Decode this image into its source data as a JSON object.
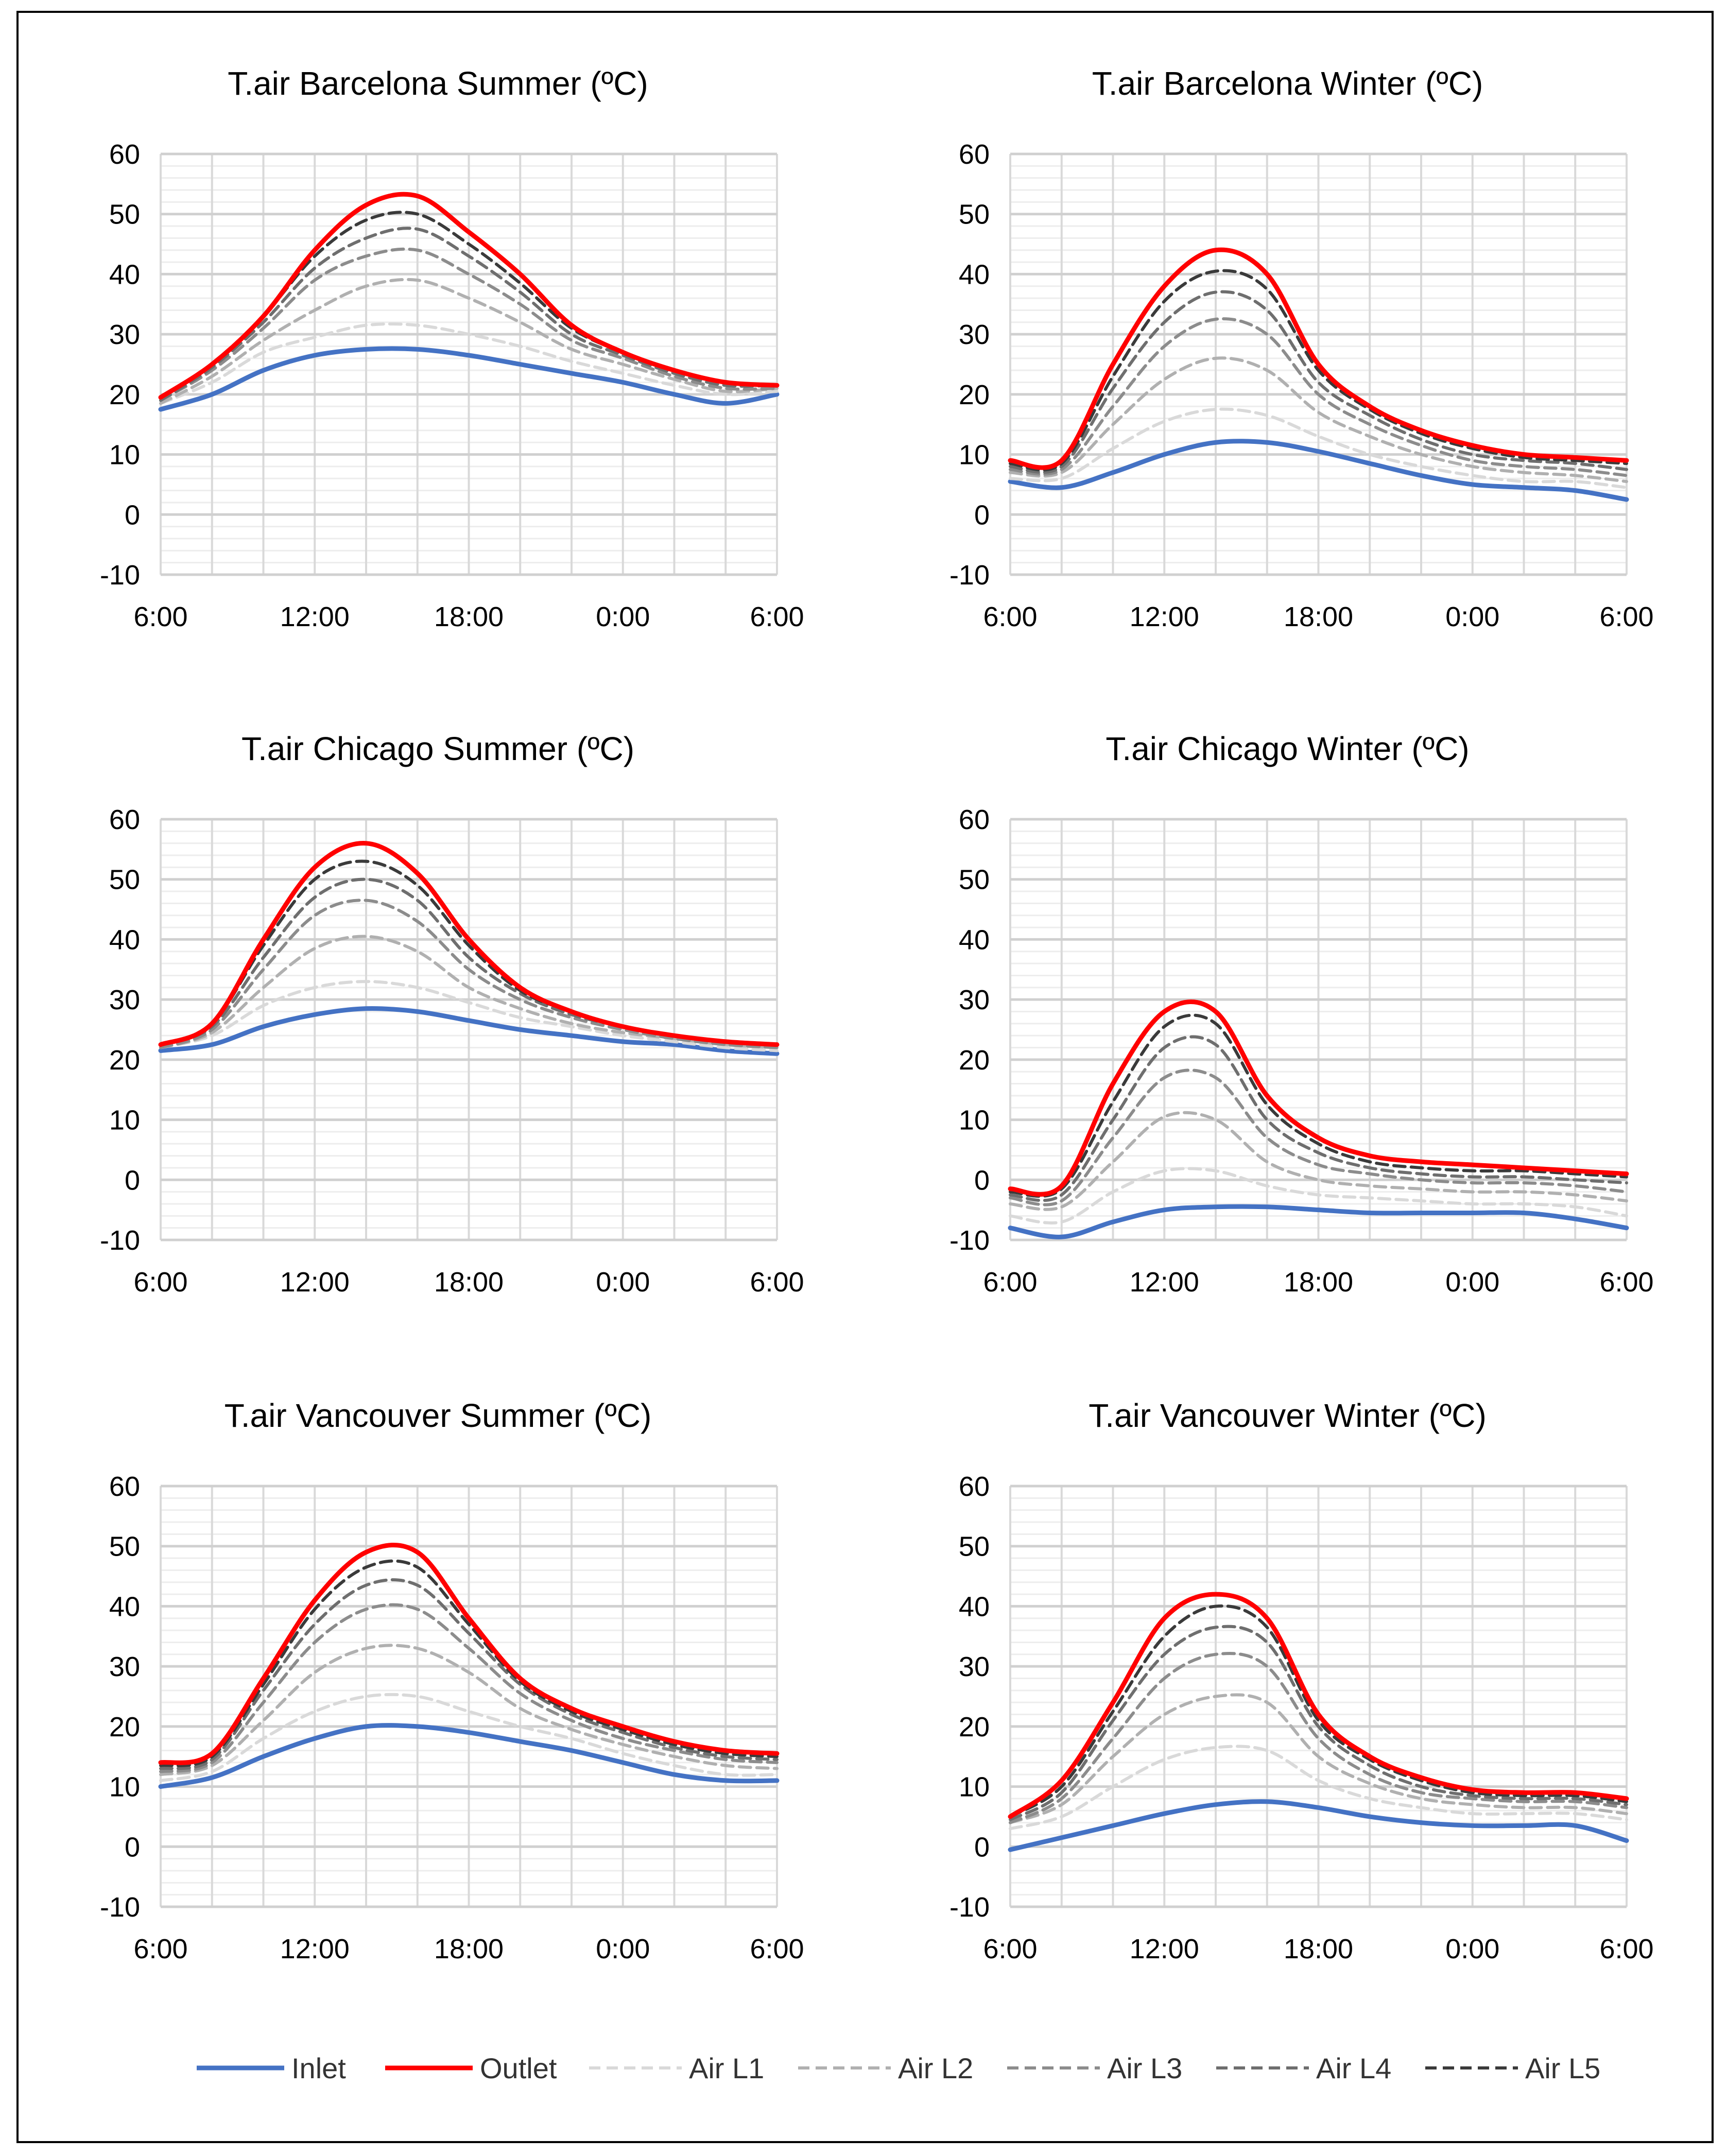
{
  "legend": [
    {
      "name": "Inlet",
      "color": "#4472C4",
      "dash": false
    },
    {
      "name": "Outlet",
      "color": "#FF0000",
      "dash": false
    },
    {
      "name": "Air L1",
      "color": "#D9D9D9",
      "dash": true
    },
    {
      "name": "Air L2",
      "color": "#B0B0B0",
      "dash": true
    },
    {
      "name": "Air L3",
      "color": "#8C8C8C",
      "dash": true
    },
    {
      "name": "Air L4",
      "color": "#6E6E6E",
      "dash": true
    },
    {
      "name": "Air L5",
      "color": "#3A3A3A",
      "dash": true
    }
  ],
  "chart_data": [
    {
      "type": "line",
      "title": "T.air Barcelona Summer (ºC)",
      "x_labels": [
        "6:00",
        "12:00",
        "18:00",
        "0:00",
        "6:00"
      ],
      "x_hours": [
        6,
        8,
        10,
        12,
        14,
        16,
        18,
        20,
        22,
        24,
        26,
        28,
        30
      ],
      "ylim": [
        -10,
        60
      ],
      "y_ticks": [
        -10,
        0,
        10,
        20,
        30,
        40,
        50,
        60
      ],
      "grid": true,
      "series": [
        {
          "name": "Inlet",
          "values": [
            17.5,
            20,
            24,
            26.5,
            27.5,
            27.5,
            26.5,
            25,
            23.5,
            22,
            20,
            18.5,
            20
          ]
        },
        {
          "name": "Outlet",
          "values": [
            19.5,
            25,
            33,
            44,
            51.5,
            53,
            47,
            40,
            31.5,
            27,
            24,
            22,
            21.5
          ]
        },
        {
          "name": "Air L1",
          "values": [
            18.5,
            22,
            27,
            29.5,
            31.5,
            31.5,
            30,
            28,
            25.5,
            23.5,
            21.5,
            20,
            20.5
          ]
        },
        {
          "name": "Air L2",
          "values": [
            18.5,
            23,
            29,
            34,
            38,
            39,
            36,
            32,
            27.5,
            25,
            22.5,
            20.5,
            21
          ]
        },
        {
          "name": "Air L3",
          "values": [
            19,
            24,
            31,
            39,
            43,
            44,
            40,
            35,
            29,
            26,
            23,
            21,
            21
          ]
        },
        {
          "name": "Air L4",
          "values": [
            19,
            24.5,
            32,
            41,
            46,
            47.5,
            43,
            37,
            30,
            26.5,
            23.5,
            21.5,
            21.5
          ]
        },
        {
          "name": "Air L5",
          "values": [
            19.5,
            25,
            33,
            43,
            49,
            50,
            45,
            38.5,
            31,
            27,
            24,
            22,
            21.5
          ]
        }
      ]
    },
    {
      "type": "line",
      "title": "T.air Barcelona Winter (ºC)",
      "x_labels": [
        "6:00",
        "12:00",
        "18:00",
        "0:00",
        "6:00"
      ],
      "x_hours": [
        6,
        8,
        10,
        12,
        14,
        16,
        18,
        20,
        22,
        24,
        26,
        28,
        30
      ],
      "ylim": [
        -10,
        60
      ],
      "y_ticks": [
        -10,
        0,
        10,
        20,
        30,
        40,
        50,
        60
      ],
      "grid": true,
      "series": [
        {
          "name": "Inlet",
          "values": [
            5.5,
            4.5,
            7,
            10,
            12,
            12,
            10.5,
            8.5,
            6.5,
            5,
            4.5,
            4,
            2.5
          ]
        },
        {
          "name": "Outlet",
          "values": [
            9,
            9,
            25,
            38,
            44,
            40,
            25,
            18,
            14,
            11.5,
            10,
            9.5,
            9
          ]
        },
        {
          "name": "Air L1",
          "values": [
            6,
            6,
            11,
            15.5,
            17.5,
            16.5,
            13,
            10,
            8,
            6.5,
            5.5,
            5.5,
            4.5
          ]
        },
        {
          "name": "Air L2",
          "values": [
            7,
            7,
            15,
            22.5,
            26,
            24,
            17,
            13,
            10,
            8,
            7,
            6.5,
            5.5
          ]
        },
        {
          "name": "Air L3",
          "values": [
            7.5,
            7.5,
            18,
            28,
            32.5,
            30,
            20,
            15,
            11.5,
            9,
            8,
            7.5,
            6.5
          ]
        },
        {
          "name": "Air L4",
          "values": [
            8,
            8,
            21,
            32,
            37,
            34,
            22,
            16.5,
            12.5,
            10,
            9,
            8.5,
            7.5
          ]
        },
        {
          "name": "Air L5",
          "values": [
            8.5,
            8.5,
            23,
            35.5,
            40.5,
            37.5,
            24,
            17.5,
            13.5,
            11,
            9.5,
            9,
            8.5
          ]
        }
      ]
    },
    {
      "type": "line",
      "title": "T.air Chicago Summer (ºC)",
      "x_labels": [
        "6:00",
        "12:00",
        "18:00",
        "0:00",
        "6:00"
      ],
      "x_hours": [
        6,
        8,
        10,
        12,
        14,
        16,
        18,
        20,
        22,
        24,
        26,
        28,
        30
      ],
      "ylim": [
        -10,
        60
      ],
      "y_ticks": [
        -10,
        0,
        10,
        20,
        30,
        40,
        50,
        60
      ],
      "grid": true,
      "series": [
        {
          "name": "Inlet",
          "values": [
            21.5,
            22.5,
            25.5,
            27.5,
            28.5,
            28,
            26.5,
            25,
            24,
            23,
            22.5,
            21.5,
            21
          ]
        },
        {
          "name": "Outlet",
          "values": [
            22.5,
            26,
            40,
            52,
            56,
            51,
            40,
            32,
            28,
            25.5,
            24,
            23,
            22.5
          ]
        },
        {
          "name": "Air L1",
          "values": [
            22,
            24,
            29,
            32,
            33,
            32,
            29.5,
            27,
            25.5,
            24,
            23,
            22,
            21.5
          ]
        },
        {
          "name": "Air L2",
          "values": [
            22,
            24.5,
            32,
            38.5,
            40.5,
            38,
            32,
            28.5,
            26,
            24.5,
            23.5,
            22.5,
            22
          ]
        },
        {
          "name": "Air L3",
          "values": [
            22,
            25,
            35,
            44,
            46.5,
            43,
            35,
            30,
            27,
            25,
            23.5,
            22.5,
            22
          ]
        },
        {
          "name": "Air L4",
          "values": [
            22.5,
            25.5,
            37,
            47,
            50,
            46.5,
            37,
            31,
            27.5,
            25.5,
            24,
            23,
            22.5
          ]
        },
        {
          "name": "Air L5",
          "values": [
            22.5,
            26,
            39,
            50,
            53,
            49,
            39,
            31.5,
            28,
            25.5,
            24,
            23,
            22.5
          ]
        }
      ]
    },
    {
      "type": "line",
      "title": "T.air Chicago Winter (ºC)",
      "x_labels": [
        "6:00",
        "12:00",
        "18:00",
        "0:00",
        "6:00"
      ],
      "x_hours": [
        6,
        8,
        10,
        12,
        14,
        16,
        18,
        20,
        22,
        24,
        26,
        28,
        30
      ],
      "ylim": [
        -10,
        60
      ],
      "y_ticks": [
        -10,
        0,
        10,
        20,
        30,
        40,
        50,
        60
      ],
      "grid": true,
      "series": [
        {
          "name": "Inlet",
          "values": [
            -8,
            -9.5,
            -7,
            -5,
            -4.5,
            -4.5,
            -5,
            -5.5,
            -5.5,
            -5.5,
            -5.5,
            -6.5,
            -8
          ]
        },
        {
          "name": "Outlet",
          "values": [
            -1.5,
            -1,
            16,
            28,
            28,
            14,
            7,
            4,
            3,
            2.5,
            2,
            1.5,
            1
          ]
        },
        {
          "name": "Air L1",
          "values": [
            -6,
            -7,
            -2,
            1.5,
            1.5,
            -1,
            -2.5,
            -3,
            -3.5,
            -4,
            -4,
            -4.5,
            -6
          ]
        },
        {
          "name": "Air L2",
          "values": [
            -4,
            -4.5,
            3,
            10.5,
            10,
            3,
            0,
            -1,
            -1.5,
            -2,
            -2,
            -2.5,
            -3.5
          ]
        },
        {
          "name": "Air L3",
          "values": [
            -3,
            -3.5,
            7,
            17,
            17,
            7,
            2.5,
            1,
            0,
            -0.5,
            -0.5,
            -1,
            -2
          ]
        },
        {
          "name": "Air L4",
          "values": [
            -2.5,
            -2.5,
            10,
            22,
            22.5,
            10,
            4.5,
            2,
            1,
            0.5,
            0.5,
            0,
            -0.5
          ]
        },
        {
          "name": "Air L5",
          "values": [
            -2,
            -1.5,
            13,
            25.5,
            26,
            12.5,
            6,
            3,
            2,
            1.5,
            1.5,
            1,
            0.5
          ]
        }
      ]
    },
    {
      "type": "line",
      "title": "T.air Vancouver  Summer (ºC)",
      "x_labels": [
        "6:00",
        "12:00",
        "18:00",
        "0:00",
        "6:00"
      ],
      "x_hours": [
        6,
        8,
        10,
        12,
        14,
        16,
        18,
        20,
        22,
        24,
        26,
        28,
        30
      ],
      "ylim": [
        -10,
        60
      ],
      "y_ticks": [
        -10,
        0,
        10,
        20,
        30,
        40,
        50,
        60
      ],
      "grid": true,
      "series": [
        {
          "name": "Inlet",
          "values": [
            10,
            11.5,
            15,
            18,
            20,
            20,
            19,
            17.5,
            16,
            14,
            12,
            11,
            11
          ]
        },
        {
          "name": "Outlet",
          "values": [
            14,
            15.5,
            28,
            41,
            49,
            49,
            38,
            28,
            23,
            20,
            17.5,
            16,
            15.5
          ]
        },
        {
          "name": "Air L1",
          "values": [
            11,
            12.5,
            18,
            22.5,
            25,
            25,
            22.5,
            20,
            18,
            15.5,
            13.5,
            12,
            12
          ]
        },
        {
          "name": "Air L2",
          "values": [
            12,
            13.5,
            21,
            29,
            33,
            33,
            29,
            23,
            19.5,
            17,
            15,
            13.5,
            13
          ]
        },
        {
          "name": "Air L3",
          "values": [
            12.5,
            14,
            24,
            34,
            39.5,
            39.5,
            33,
            25.5,
            21,
            18,
            16,
            14.5,
            14
          ]
        },
        {
          "name": "Air L4",
          "values": [
            13,
            14.5,
            26,
            37,
            43.5,
            43.5,
            35.5,
            27,
            22,
            19,
            16.5,
            15,
            14.5
          ]
        },
        {
          "name": "Air L5",
          "values": [
            13.5,
            15,
            27,
            39.5,
            46.5,
            46.5,
            37,
            27.5,
            22.5,
            19.5,
            17,
            15.5,
            15
          ]
        }
      ]
    },
    {
      "type": "line",
      "title": "T.air Vancouver Winter (ºC)",
      "x_labels": [
        "6:00",
        "12:00",
        "18:00",
        "0:00",
        "6:00"
      ],
      "x_hours": [
        6,
        8,
        10,
        12,
        14,
        16,
        18,
        20,
        22,
        24,
        26,
        28,
        30
      ],
      "ylim": [
        -10,
        60
      ],
      "y_ticks": [
        -10,
        0,
        10,
        20,
        30,
        40,
        50,
        60
      ],
      "grid": true,
      "series": [
        {
          "name": "Inlet",
          "values": [
            -0.5,
            1.5,
            3.5,
            5.5,
            7,
            7.5,
            6.5,
            5,
            4,
            3.5,
            3.5,
            3.5,
            1
          ]
        },
        {
          "name": "Outlet",
          "values": [
            5,
            11,
            24,
            38,
            42,
            38,
            22,
            15,
            11.5,
            9.5,
            9,
            9,
            8
          ]
        },
        {
          "name": "Air L1",
          "values": [
            3,
            5,
            10,
            14.5,
            16.5,
            16,
            11,
            8,
            6.5,
            5.5,
            5.5,
            5.5,
            4.5
          ]
        },
        {
          "name": "Air L2",
          "values": [
            4,
            7,
            15,
            22,
            25,
            24,
            15,
            10.5,
            8,
            7,
            6.5,
            6.5,
            5.5
          ]
        },
        {
          "name": "Air L3",
          "values": [
            4,
            8,
            18,
            28,
            32,
            30,
            18,
            12,
            9,
            8,
            7.5,
            7.5,
            6.5
          ]
        },
        {
          "name": "Air L4",
          "values": [
            4.5,
            9,
            21,
            32,
            36.5,
            34,
            20,
            13.5,
            10,
            8.5,
            8,
            8,
            7
          ]
        },
        {
          "name": "Air L5",
          "values": [
            5,
            10,
            22.5,
            35,
            40,
            36.5,
            21,
            14.5,
            11,
            9,
            8.5,
            8.5,
            7.5
          ]
        }
      ]
    }
  ]
}
